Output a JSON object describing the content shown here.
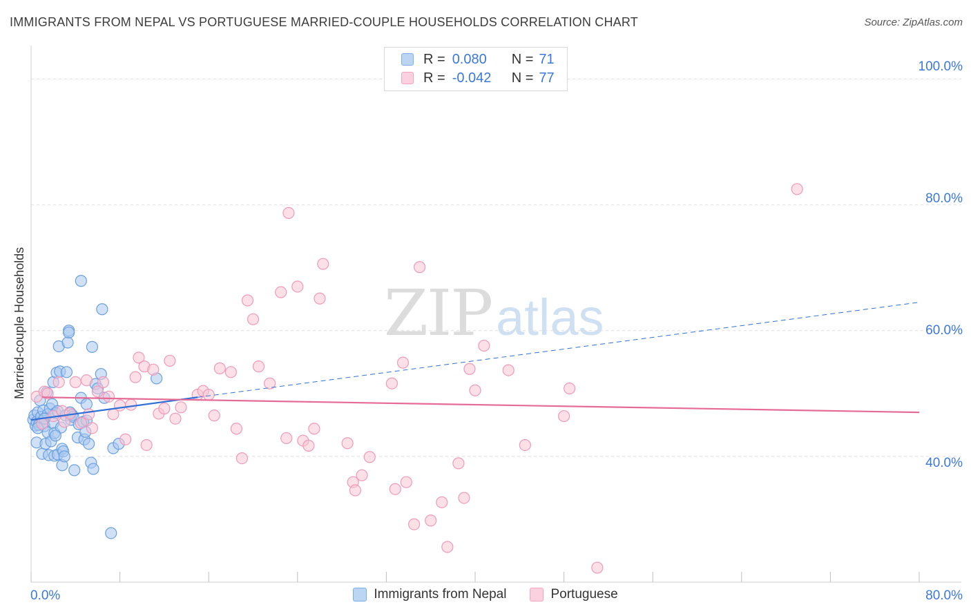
{
  "title": "IMMIGRANTS FROM NEPAL VS PORTUGUESE MARRIED-COUPLE HOUSEHOLDS CORRELATION CHART",
  "source": "Source: ZipAtlas.com",
  "watermark": {
    "zip": "ZIP",
    "atlas": "atlas"
  },
  "legend": {
    "rows": [
      {
        "r_label": "R =",
        "r_value": "0.080",
        "n_label": "N =",
        "n_value": "71",
        "color": "#7aaee8"
      },
      {
        "r_label": "R =",
        "r_value": "-0.042",
        "n_label": "N =",
        "n_value": "77",
        "color": "#f4a4bf"
      }
    ]
  },
  "bottom_legend": [
    {
      "label": "Immigrants from Nepal",
      "color": "#7aaee8"
    },
    {
      "label": "Portuguese",
      "color": "#f4a4bf"
    }
  ],
  "colors": {
    "nepal_fill": "#a9c8ee",
    "nepal_stroke": "#6a9fe0",
    "nepal_line": "#2f6fd6",
    "port_fill": "#f8c6d6",
    "port_stroke": "#ee9ab8",
    "port_line": "#e56a96",
    "axis_text": "#3b78d8",
    "grid": "#dedede"
  },
  "chart_data": {
    "type": "scatter",
    "title": "IMMIGRANTS FROM NEPAL VS PORTUGUESE MARRIED-COUPLE HOUSEHOLDS CORRELATION CHART",
    "xlabel": "",
    "ylabel": "Married-couple Households",
    "xlim": [
      0,
      80
    ],
    "ylim": [
      20,
      104
    ],
    "x_tick_labels": [
      "0.0%",
      "80.0%"
    ],
    "y_ticks": [
      40,
      60,
      80,
      100
    ],
    "y_tick_labels": [
      "40.0%",
      "60.0%",
      "80.0%",
      "100.0%"
    ],
    "grid": true,
    "series": [
      {
        "name": "Immigrants from Nepal",
        "r": 0.08,
        "n": 71,
        "trend": {
          "solid": [
            [
              0,
              45.8
            ],
            [
              15,
              49.4
            ]
          ],
          "dashed": [
            [
              15,
              49.4
            ],
            [
              80,
              64.5
            ]
          ]
        },
        "points": [
          [
            0.2,
            45.8
          ],
          [
            0.3,
            46.5
          ],
          [
            0.4,
            44.9
          ],
          [
            0.5,
            45.5
          ],
          [
            0.5,
            42.2
          ],
          [
            0.6,
            47.0
          ],
          [
            0.7,
            45.0
          ],
          [
            0.8,
            48.9
          ],
          [
            0.9,
            46.3
          ],
          [
            1.0,
            40.4
          ],
          [
            1.0,
            45.2
          ],
          [
            1.1,
            47.3
          ],
          [
            1.2,
            44.8
          ],
          [
            1.3,
            42.0
          ],
          [
            1.4,
            50.2
          ],
          [
            1.5,
            43.8
          ],
          [
            1.5,
            46.7
          ],
          [
            1.6,
            40.2
          ],
          [
            1.7,
            47.6
          ],
          [
            1.8,
            42.4
          ],
          [
            1.9,
            48.3
          ],
          [
            2.0,
            45.3
          ],
          [
            2.0,
            51.8
          ],
          [
            2.1,
            40.1
          ],
          [
            2.1,
            43.7
          ],
          [
            2.2,
            46.9
          ],
          [
            2.3,
            53.3
          ],
          [
            2.4,
            47.2
          ],
          [
            2.4,
            40.3
          ],
          [
            2.5,
            57.5
          ],
          [
            2.6,
            53.5
          ],
          [
            2.7,
            44.6
          ],
          [
            2.8,
            41.2
          ],
          [
            2.8,
            38.6
          ],
          [
            2.9,
            40.8
          ],
          [
            3.0,
            40.0
          ],
          [
            3.1,
            46.5
          ],
          [
            3.2,
            53.4
          ],
          [
            3.3,
            58.1
          ],
          [
            3.4,
            60.0
          ],
          [
            3.4,
            59.7
          ],
          [
            3.5,
            47.0
          ],
          [
            3.6,
            45.8
          ],
          [
            3.7,
            46.6
          ],
          [
            3.8,
            46.3
          ],
          [
            3.9,
            37.8
          ],
          [
            4.2,
            43.0
          ],
          [
            4.3,
            45.1
          ],
          [
            4.5,
            67.9
          ],
          [
            4.5,
            49.3
          ],
          [
            4.7,
            45.5
          ],
          [
            4.8,
            42.7
          ],
          [
            4.9,
            43.9
          ],
          [
            5.0,
            48.3
          ],
          [
            5.0,
            45.7
          ],
          [
            5.2,
            42.0
          ],
          [
            5.4,
            39.0
          ],
          [
            5.5,
            57.4
          ],
          [
            5.6,
            38.0
          ],
          [
            5.8,
            51.5
          ],
          [
            6.0,
            50.8
          ],
          [
            6.3,
            53.1
          ],
          [
            6.4,
            63.4
          ],
          [
            6.6,
            49.3
          ],
          [
            7.2,
            27.8
          ],
          [
            7.4,
            41.3
          ],
          [
            7.9,
            42.0
          ],
          [
            11.3,
            52.4
          ],
          [
            0.6,
            44.5
          ],
          [
            1.2,
            46.0
          ],
          [
            2.2,
            43.3
          ]
        ]
      },
      {
        "name": "Portuguese",
        "r": -0.042,
        "n": 77,
        "trend": {
          "solid": [
            [
              1,
              49.4
            ],
            [
              80,
              47.0
            ]
          ]
        },
        "points": [
          [
            0.5,
            49.5
          ],
          [
            1.0,
            45.2
          ],
          [
            1.2,
            50.3
          ],
          [
            1.5,
            50.0
          ],
          [
            2.0,
            46.4
          ],
          [
            2.5,
            51.8
          ],
          [
            2.8,
            47.2
          ],
          [
            3.0,
            45.5
          ],
          [
            3.5,
            46.8
          ],
          [
            4.0,
            51.8
          ],
          [
            4.5,
            45.3
          ],
          [
            5.0,
            52.1
          ],
          [
            5.2,
            46.7
          ],
          [
            5.5,
            44.5
          ],
          [
            6.0,
            50.3
          ],
          [
            6.5,
            51.8
          ],
          [
            7.0,
            49.5
          ],
          [
            7.4,
            46.7
          ],
          [
            8.0,
            48.1
          ],
          [
            8.5,
            42.7
          ],
          [
            9.0,
            48.2
          ],
          [
            9.4,
            52.6
          ],
          [
            9.7,
            55.7
          ],
          [
            10.2,
            54.3
          ],
          [
            10.4,
            41.8
          ],
          [
            11.0,
            53.8
          ],
          [
            11.5,
            46.8
          ],
          [
            12.0,
            47.6
          ],
          [
            12.5,
            55.2
          ],
          [
            13.0,
            46.0
          ],
          [
            13.5,
            47.8
          ],
          [
            15.0,
            49.8
          ],
          [
            15.5,
            50.4
          ],
          [
            16.0,
            49.8
          ],
          [
            16.5,
            46.5
          ],
          [
            17.0,
            54.0
          ],
          [
            18.0,
            53.4
          ],
          [
            18.5,
            44.4
          ],
          [
            19.0,
            39.7
          ],
          [
            19.5,
            64.8
          ],
          [
            20.0,
            61.8
          ],
          [
            20.5,
            54.3
          ],
          [
            21.5,
            51.6
          ],
          [
            22.5,
            66.1
          ],
          [
            23.0,
            42.9
          ],
          [
            23.2,
            78.7
          ],
          [
            24.0,
            67.0
          ],
          [
            24.5,
            42.5
          ],
          [
            25.0,
            41.7
          ],
          [
            25.5,
            44.4
          ],
          [
            26.0,
            65.1
          ],
          [
            26.3,
            70.6
          ],
          [
            28.5,
            42.1
          ],
          [
            29.0,
            35.9
          ],
          [
            29.2,
            34.6
          ],
          [
            29.8,
            37.0
          ],
          [
            30.5,
            39.9
          ],
          [
            32.5,
            51.6
          ],
          [
            32.8,
            34.8
          ],
          [
            33.5,
            54.9
          ],
          [
            33.8,
            35.9
          ],
          [
            34.5,
            29.2
          ],
          [
            35.0,
            70.1
          ],
          [
            36.0,
            29.8
          ],
          [
            37.0,
            32.7
          ],
          [
            37.5,
            25.6
          ],
          [
            38.5,
            38.9
          ],
          [
            39.0,
            33.4
          ],
          [
            39.5,
            53.9
          ],
          [
            40.0,
            50.5
          ],
          [
            40.8,
            57.6
          ],
          [
            43.0,
            53.7
          ],
          [
            44.5,
            41.8
          ],
          [
            48.0,
            46.4
          ],
          [
            48.5,
            50.8
          ],
          [
            51.0,
            22.3
          ],
          [
            69.0,
            82.5
          ]
        ]
      }
    ]
  }
}
